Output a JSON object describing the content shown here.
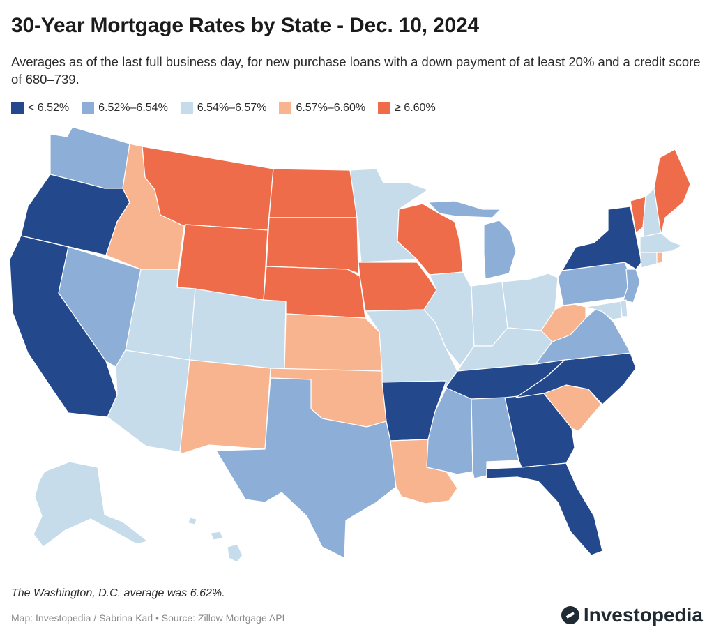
{
  "title": "30-Year Mortgage Rates by State - Dec. 10, 2024",
  "subtitle": "Averages as of the last full business day, for new purchase loans with a down payment of at least 20% and a credit score of 680–739.",
  "legend": [
    {
      "label": "< 6.52%",
      "color": "#23488c"
    },
    {
      "label": "6.52%–6.54%",
      "color": "#8daed6"
    },
    {
      "label": "6.54%–6.57%",
      "color": "#c6dcea"
    },
    {
      "label": "6.57%–6.60%",
      "color": "#f8b48f"
    },
    {
      "label": "≥ 6.60%",
      "color": "#ee6c4a"
    }
  ],
  "map_data": {
    "colors": {
      "c0": "#23488c",
      "c1": "#8daed6",
      "c2": "#c6dcea",
      "c3": "#f8b48f",
      "c4": "#ee6c4a"
    },
    "states": {
      "WA": "c1",
      "OR": "c0",
      "CA": "c0",
      "ID": "c3",
      "NV": "c1",
      "MT": "c4",
      "WY": "c4",
      "UT": "c2",
      "AZ": "c2",
      "CO": "c2",
      "NM": "c3",
      "ND": "c4",
      "SD": "c4",
      "NE": "c4",
      "KS": "c3",
      "OK": "c3",
      "TX": "c1",
      "MN": "c2",
      "IA": "c4",
      "MO": "c2",
      "AR": "c0",
      "LA": "c3",
      "WI": "c4",
      "IL": "c2",
      "MI": "c1",
      "IN": "c2",
      "OH": "c2",
      "KY": "c2",
      "TN": "c0",
      "MS": "c1",
      "AL": "c1",
      "GA": "c0",
      "FL": "c0",
      "SC": "c3",
      "NC": "c0",
      "VA": "c1",
      "WV": "c3",
      "PA": "c1",
      "NY": "c0",
      "VT": "c4",
      "NH": "c2",
      "ME": "c4",
      "MA": "c2",
      "RI": "c3",
      "CT": "c2",
      "NJ": "c1",
      "DE": "c2",
      "MD": "c2",
      "AK": "c2",
      "HI": "c2"
    }
  },
  "note": "The Washington, D.C. average was 6.62%.",
  "source": "Map: Investopedia / Sabrina Karl • Source: Zillow Mortgage API",
  "brand": "Investopedia"
}
